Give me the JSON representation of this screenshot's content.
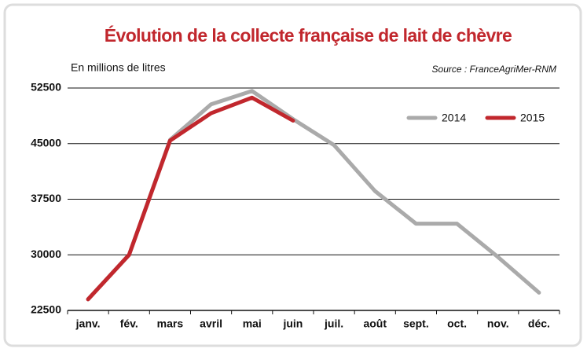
{
  "chart_data": {
    "type": "line",
    "title": "Évolution de la collecte française de lait de chèvre",
    "y_label": "En millions de litres",
    "source": "Source : FranceAgriMer-RNM",
    "categories": [
      "janv.",
      "fév.",
      "mars",
      "avril",
      "mai",
      "juin",
      "juil.",
      "août",
      "sept.",
      "oct.",
      "nov.",
      "déc."
    ],
    "series": [
      {
        "name": "2014",
        "color": "#aaaaaa",
        "values": [
          24000,
          30000,
          45500,
          50300,
          52100,
          48300,
          44800,
          38600,
          34200,
          34200,
          29700,
          24900
        ]
      },
      {
        "name": "2015",
        "color": "#c1272d",
        "values": [
          24000,
          30000,
          45400,
          49100,
          51200,
          48100,
          null,
          null,
          null,
          null,
          null,
          null
        ]
      }
    ],
    "ylim": [
      22500,
      52500
    ],
    "yticks": [
      22500,
      30000,
      37500,
      45000,
      52500
    ],
    "grid": true,
    "legend": "upper right"
  }
}
